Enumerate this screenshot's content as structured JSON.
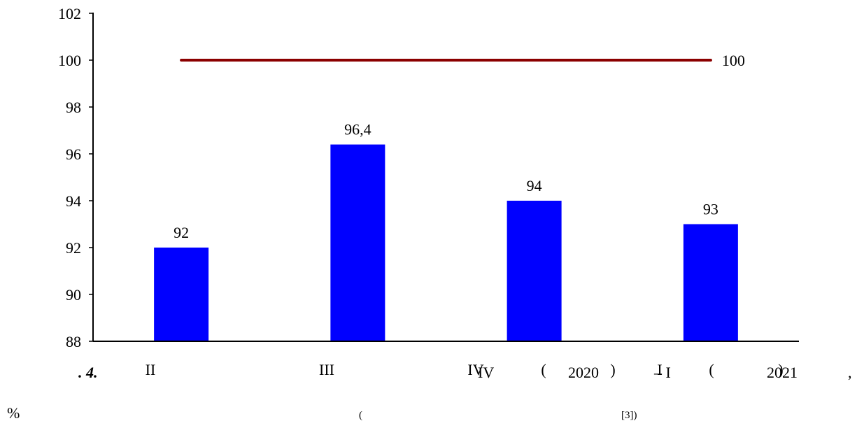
{
  "chart_data": {
    "type": "bar",
    "categories": [
      "II",
      "III",
      "IV",
      "I"
    ],
    "values": [
      92,
      96.4,
      94,
      93
    ],
    "data_labels": [
      "92",
      "96,4",
      "94",
      "93"
    ],
    "reference_line": {
      "value": 100,
      "label": "100",
      "color": "#8b0000"
    },
    "bar_color": "#0000ff",
    "ylim": [
      88,
      102
    ],
    "yticks": [
      88,
      90,
      92,
      94,
      96,
      98,
      100,
      102
    ],
    "extra_x_marks": [
      "(",
      ")",
      "(",
      ")"
    ],
    "title": "",
    "xlabel": "",
    "ylabel": ""
  },
  "caption": {
    "line1": {
      "fig_label": ". 4.",
      "quarter_start": "IV",
      "year_start": "2020",
      "quarter_end": "– I",
      "year_end": "2021",
      "comma": ","
    },
    "line2": {
      "percent": "%",
      "open_paren": "(",
      "source_ref": "[3])"
    }
  }
}
